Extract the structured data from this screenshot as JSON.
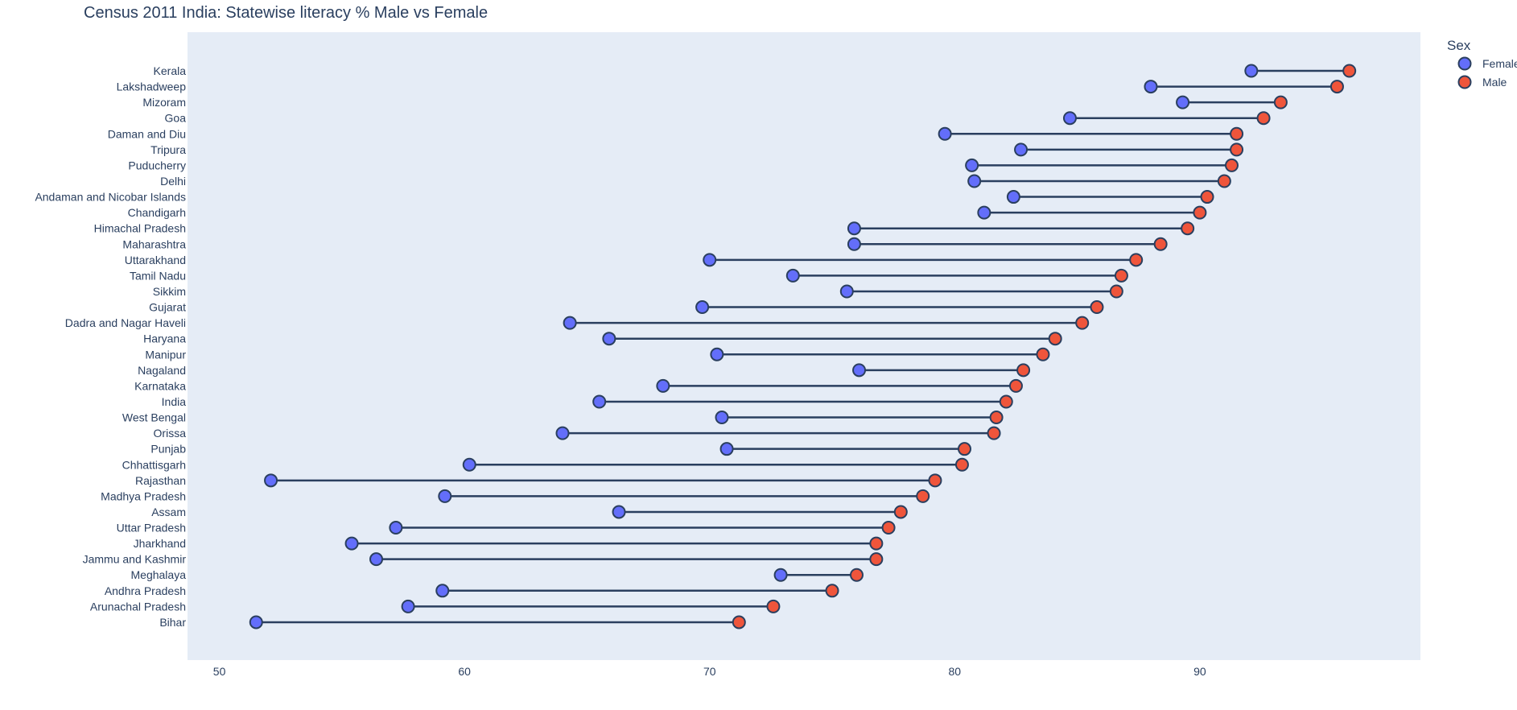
{
  "chart_data": {
    "type": "scatter",
    "title": "Census 2011 India: Statewise literacy % Male vs Female",
    "xlabel": "",
    "ylabel": "",
    "xlim": [
      48.7,
      99.0
    ],
    "x_ticks": [
      "50",
      "60",
      "70",
      "80",
      "90"
    ],
    "x_tick_values": [
      50,
      60,
      70,
      80,
      90
    ],
    "grid": false,
    "legend_title": "Sex",
    "legend_position": "top-right",
    "categories": [
      "Kerala",
      "Lakshadweep",
      "Mizoram",
      "Goa",
      "Daman and Diu",
      "Tripura",
      "Puducherry",
      "Delhi",
      "Andaman and Nicobar Islands",
      "Chandigarh",
      "Himachal Pradesh",
      "Maharashtra",
      "Uttarakhand",
      "Tamil Nadu",
      "Sikkim",
      "Gujarat",
      "Dadra and Nagar Haveli",
      "Haryana",
      "Manipur",
      "Nagaland",
      "Karnataka",
      "India",
      "West Bengal",
      "Orissa",
      "Punjab",
      "Chhattisgarh",
      "Rajasthan",
      "Madhya Pradesh",
      "Assam",
      "Uttar Pradesh",
      "Jharkhand",
      "Jammu and Kashmir",
      "Meghalaya",
      "Andhra Pradesh",
      "Arunachal Pradesh",
      "Bihar"
    ],
    "series": [
      {
        "name": "Female",
        "color": "#636efa",
        "values": [
          92.1,
          88.0,
          89.3,
          84.7,
          79.6,
          82.7,
          80.7,
          80.8,
          82.4,
          81.2,
          75.9,
          75.9,
          70.0,
          73.4,
          75.6,
          69.7,
          64.3,
          65.9,
          70.3,
          76.1,
          68.1,
          65.5,
          70.5,
          64.0,
          70.7,
          60.2,
          52.1,
          59.2,
          66.3,
          57.2,
          55.4,
          56.4,
          72.9,
          59.1,
          57.7,
          51.5
        ]
      },
      {
        "name": "Male",
        "color": "#ef553b",
        "values": [
          96.1,
          95.6,
          93.3,
          92.6,
          91.5,
          91.5,
          91.3,
          91.0,
          90.3,
          90.0,
          89.5,
          88.4,
          87.4,
          86.8,
          86.6,
          85.8,
          85.2,
          84.1,
          83.6,
          82.8,
          82.5,
          82.1,
          81.7,
          81.6,
          80.4,
          80.3,
          79.2,
          78.7,
          77.8,
          77.3,
          76.8,
          76.8,
          76.0,
          75.0,
          72.6,
          71.2
        ]
      }
    ],
    "colors": {
      "plot_bg": "#e5ecf6",
      "connector": "#2a3f5f",
      "marker_outline": "#2a3f5f",
      "text": "#2a3f5f"
    }
  }
}
